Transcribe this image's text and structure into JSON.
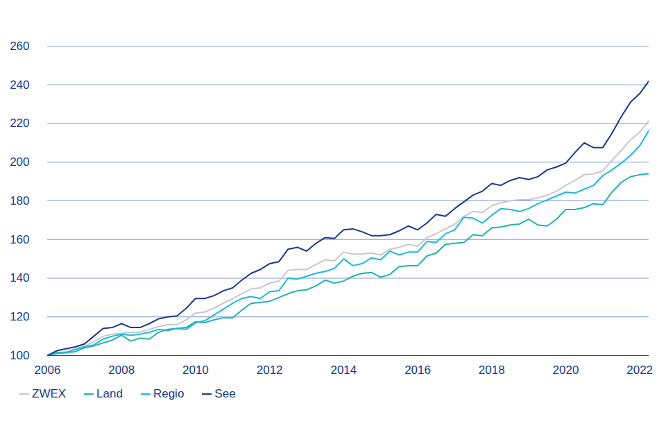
{
  "chart_data": {
    "type": "line",
    "x": [
      2006,
      2006.25,
      2006.5,
      2006.75,
      2007,
      2007.25,
      2007.5,
      2007.75,
      2008,
      2008.25,
      2008.5,
      2008.75,
      2009,
      2009.25,
      2009.5,
      2009.75,
      2010,
      2010.25,
      2010.5,
      2010.75,
      2011,
      2011.25,
      2011.5,
      2011.75,
      2012,
      2012.25,
      2012.5,
      2012.75,
      2013,
      2013.25,
      2013.5,
      2013.75,
      2014,
      2014.25,
      2014.5,
      2014.75,
      2015,
      2015.25,
      2015.5,
      2015.75,
      2016,
      2016.25,
      2016.5,
      2016.75,
      2017,
      2017.25,
      2017.5,
      2017.75,
      2018,
      2018.25,
      2018.5,
      2018.75,
      2019,
      2019.25,
      2019.5,
      2019.75,
      2020,
      2020.25,
      2020.5,
      2020.75,
      2021,
      2021.25,
      2021.5,
      2021.75,
      2022,
      2022.25
    ],
    "series": [
      {
        "name": "ZWEX",
        "color": "#c8c8cc",
        "values": [
          100,
          101.5,
          102,
          103.5,
          105,
          107,
          110,
          111,
          111.5,
          112,
          112,
          113.5,
          115,
          116,
          116,
          118.5,
          122,
          122.5,
          124.5,
          127,
          129.5,
          132,
          134.5,
          135,
          137.5,
          138.5,
          144,
          144.5,
          144.5,
          147,
          149.5,
          149,
          153.5,
          152.5,
          152.5,
          153,
          152,
          155,
          156,
          157.5,
          156.5,
          161,
          163,
          165.5,
          168,
          172,
          174.5,
          174,
          177.5,
          179,
          180,
          180.5,
          180.5,
          181.5,
          183,
          185,
          188,
          190.5,
          193.5,
          194,
          195.5,
          201,
          206,
          211.5,
          215.5,
          221.5
        ]
      },
      {
        "name": "Land",
        "color": "#22b3ad",
        "values": [
          100,
          101.5,
          101.5,
          102,
          104,
          105,
          106.5,
          108,
          110.5,
          107.5,
          109,
          108.5,
          112,
          113.5,
          114,
          114.5,
          117.5,
          117,
          118.5,
          119.5,
          119.5,
          123.5,
          127,
          127.5,
          128,
          130,
          132,
          133.5,
          134,
          136,
          139,
          137.5,
          138.5,
          141,
          142.5,
          143,
          140.5,
          142,
          146,
          146.5,
          146.5,
          151.5,
          153,
          157.5,
          158,
          158.5,
          162.5,
          162,
          166,
          166.5,
          167.5,
          168,
          170.5,
          167.5,
          167,
          170.5,
          175.5,
          175.5,
          176.5,
          178.5,
          178,
          184.5,
          189.5,
          192.5,
          193.5,
          194
        ]
      },
      {
        "name": "Regio",
        "color": "#1cb8e0",
        "values": [
          100,
          101,
          101.5,
          103,
          104.5,
          105.5,
          108.5,
          110,
          111,
          110.5,
          111,
          112,
          113.5,
          113,
          114,
          113.5,
          117,
          118,
          121,
          124,
          127,
          129.5,
          130.5,
          129.5,
          133,
          133.5,
          140,
          139.5,
          141,
          142.5,
          143.5,
          145,
          150,
          146.5,
          147.5,
          150.5,
          149.5,
          154,
          152,
          153.5,
          153.5,
          159,
          158.5,
          163,
          165,
          171.5,
          171,
          168.5,
          172.5,
          176,
          175.5,
          174.5,
          176,
          178.5,
          180.5,
          182.5,
          184.5,
          184,
          186,
          188,
          193,
          196,
          199.5,
          203.5,
          208.5,
          216.5
        ]
      },
      {
        "name": "See",
        "color": "#1a3a8c",
        "values": [
          100,
          102.5,
          103.5,
          104.5,
          106,
          110,
          114,
          114.5,
          116.5,
          114.5,
          114.5,
          116.5,
          119,
          120,
          120.5,
          124.5,
          129.5,
          129.5,
          131,
          133.5,
          135,
          139,
          142.5,
          144.5,
          147.5,
          148.5,
          155,
          156,
          154,
          158,
          161,
          160.5,
          165,
          165.5,
          164,
          162,
          162,
          162.5,
          164.5,
          167,
          165,
          168.5,
          173,
          172,
          176,
          179.5,
          183,
          185,
          189,
          188,
          190.5,
          192,
          191,
          192.5,
          196,
          197.5,
          199.5,
          205,
          210,
          207.5,
          207.5,
          215,
          223.5,
          231,
          235.5,
          242
        ]
      }
    ],
    "xlim": [
      2006,
      2022.25
    ],
    "xticks": [
      2006,
      2008,
      2010,
      2012,
      2014,
      2016,
      2018,
      2020,
      2022
    ],
    "ylim": [
      100,
      260
    ],
    "yticks": [
      100,
      120,
      140,
      160,
      180,
      200,
      220,
      240,
      260
    ],
    "grid": true,
    "legend": "bottom"
  }
}
